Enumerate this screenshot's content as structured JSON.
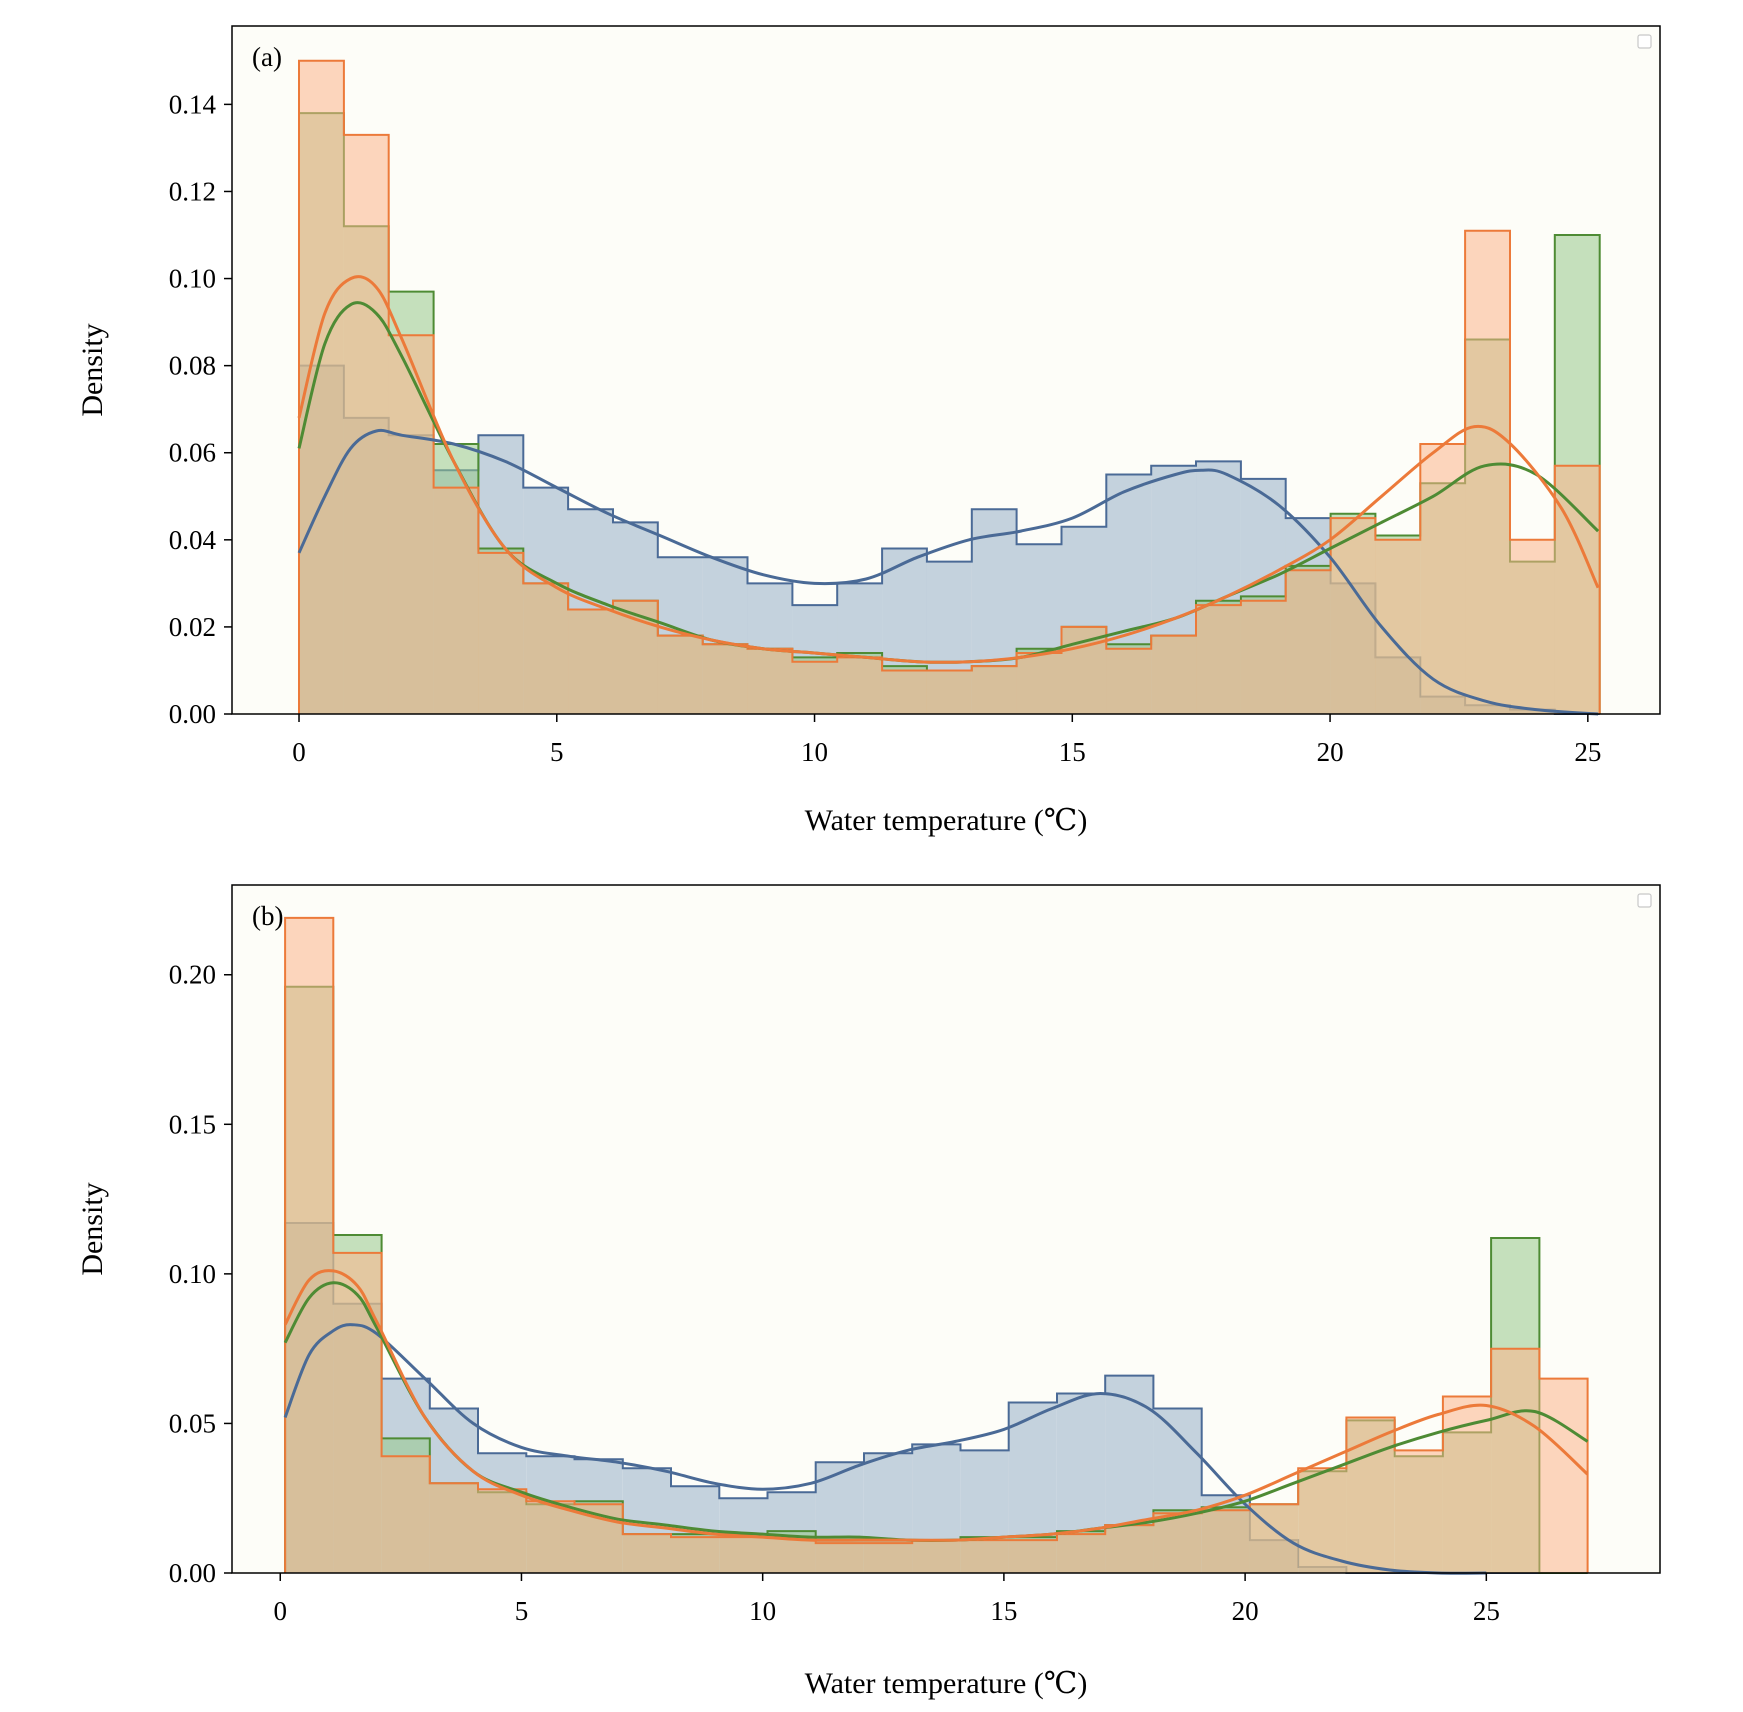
{
  "colors": {
    "background": "#fdfdf8",
    "blue_fill": "#9fb5cc",
    "blue_line": "#4a6a96",
    "green_fill": "#98c98a",
    "green_line": "#4e8b34",
    "orange_fill": "#fcb48b",
    "orange_line": "#ec7a3a"
  },
  "chart_data": [
    {
      "type": "histogram",
      "panel_label": "(a)",
      "xlabel": "Water temperature (℃)",
      "ylabel": "Density",
      "xlim": [
        -1.3,
        26.4
      ],
      "ylim": [
        0,
        0.158
      ],
      "xticks": [
        "0",
        "5",
        "10",
        "15",
        "20",
        "25"
      ],
      "xtick_values": [
        0,
        5,
        10,
        15,
        20,
        25
      ],
      "yticks": [
        "0.00",
        "0.02",
        "0.04",
        "0.06",
        "0.08",
        "0.10",
        "0.12",
        "0.14"
      ],
      "ytick_values": [
        0,
        0.02,
        0.04,
        0.06,
        0.08,
        0.1,
        0.12,
        0.14
      ],
      "grid": false,
      "legend": "top-right (empty)",
      "bin_edges": [
        0,
        0.87,
        1.74,
        2.61,
        3.48,
        4.35,
        5.22,
        6.09,
        6.96,
        7.83,
        8.7,
        9.57,
        10.44,
        11.31,
        12.18,
        13.05,
        13.92,
        14.79,
        15.66,
        16.53,
        17.4,
        18.27,
        19.14,
        20.01,
        20.88,
        21.75,
        22.62,
        23.49,
        24.36,
        25.23
      ],
      "series": [
        {
          "color_key": "blue",
          "hist": [
            0.08,
            0.068,
            0.064,
            0.056,
            0.064,
            0.052,
            0.047,
            0.044,
            0.036,
            0.036,
            0.03,
            0.025,
            0.03,
            0.038,
            0.035,
            0.047,
            0.039,
            0.043,
            0.055,
            0.057,
            0.058,
            0.054,
            0.045,
            0.03,
            0.013,
            0.004,
            0.002,
            0.001,
            0.0,
            0.0
          ],
          "kde_x": [
            0,
            0.5,
            1,
            1.5,
            2,
            3,
            4,
            5,
            6,
            7,
            8,
            9,
            10,
            11,
            12,
            13,
            14,
            15,
            16,
            17,
            17.5,
            18,
            19,
            20,
            21,
            22,
            23,
            24,
            25.2
          ],
          "kde_y": [
            0.037,
            0.05,
            0.061,
            0.065,
            0.064,
            0.062,
            0.058,
            0.052,
            0.046,
            0.041,
            0.036,
            0.032,
            0.03,
            0.031,
            0.036,
            0.04,
            0.042,
            0.045,
            0.051,
            0.055,
            0.056,
            0.055,
            0.048,
            0.036,
            0.02,
            0.008,
            0.003,
            0.001,
            0.0
          ]
        },
        {
          "color_key": "green",
          "hist": [
            0.138,
            0.112,
            0.097,
            0.062,
            0.038,
            0.03,
            0.024,
            0.026,
            0.018,
            0.016,
            0.015,
            0.013,
            0.014,
            0.011,
            0.01,
            0.011,
            0.015,
            0.02,
            0.016,
            0.018,
            0.026,
            0.027,
            0.034,
            0.046,
            0.041,
            0.053,
            0.086,
            0.035,
            0.11,
            0.0
          ],
          "kde_x": [
            0,
            0.5,
            1,
            1.5,
            2,
            3,
            4,
            5,
            6,
            7,
            8,
            9,
            10,
            11,
            12,
            13,
            14,
            15,
            16,
            17,
            18,
            19,
            20,
            21,
            22,
            23,
            24,
            25.2
          ],
          "kde_y": [
            0.061,
            0.085,
            0.094,
            0.092,
            0.082,
            0.058,
            0.038,
            0.03,
            0.025,
            0.021,
            0.017,
            0.015,
            0.014,
            0.013,
            0.012,
            0.012,
            0.013,
            0.016,
            0.019,
            0.022,
            0.027,
            0.032,
            0.038,
            0.044,
            0.05,
            0.057,
            0.055,
            0.042
          ]
        },
        {
          "color_key": "orange",
          "hist": [
            0.15,
            0.133,
            0.087,
            0.052,
            0.037,
            0.03,
            0.024,
            0.026,
            0.018,
            0.016,
            0.015,
            0.012,
            0.013,
            0.01,
            0.01,
            0.011,
            0.014,
            0.02,
            0.015,
            0.018,
            0.025,
            0.026,
            0.033,
            0.045,
            0.04,
            0.062,
            0.111,
            0.04,
            0.057,
            0.0
          ],
          "kde_x": [
            0,
            0.5,
            1,
            1.5,
            2,
            3,
            4,
            5,
            6,
            7,
            8,
            9,
            10,
            11,
            12,
            13,
            14,
            15,
            16,
            17,
            18,
            19,
            20,
            21,
            22,
            22.8,
            23.5,
            24.5,
            25.2
          ],
          "kde_y": [
            0.068,
            0.092,
            0.1,
            0.098,
            0.086,
            0.058,
            0.038,
            0.029,
            0.024,
            0.02,
            0.017,
            0.015,
            0.014,
            0.013,
            0.012,
            0.012,
            0.013,
            0.015,
            0.018,
            0.022,
            0.027,
            0.033,
            0.04,
            0.05,
            0.06,
            0.066,
            0.062,
            0.047,
            0.029
          ]
        }
      ]
    },
    {
      "type": "histogram",
      "panel_label": "(b)",
      "xlabel": "Water temperature (℃)",
      "ylabel": "Density",
      "xlim": [
        -1.0,
        28.6
      ],
      "ylim": [
        0,
        0.23
      ],
      "xticks": [
        "0",
        "5",
        "10",
        "15",
        "20",
        "25"
      ],
      "xtick_values": [
        0,
        5,
        10,
        15,
        20,
        25
      ],
      "yticks": [
        "0.00",
        "0.05",
        "0.10",
        "0.15",
        "0.20"
      ],
      "ytick_values": [
        0,
        0.05,
        0.1,
        0.15,
        0.2
      ],
      "grid": false,
      "legend": "top-right (empty)",
      "bin_edges": [
        0.1,
        1.1,
        2.1,
        3.1,
        4.1,
        5.1,
        6.1,
        7.1,
        8.1,
        9.1,
        10.1,
        11.1,
        12.1,
        13.1,
        14.1,
        15.1,
        16.1,
        17.1,
        18.1,
        19.1,
        20.1,
        21.1,
        22.1,
        23.1,
        24.1,
        25.1,
        26.1,
        27.1
      ],
      "series": [
        {
          "color_key": "blue",
          "hist": [
            0.117,
            0.09,
            0.065,
            0.055,
            0.04,
            0.039,
            0.038,
            0.035,
            0.029,
            0.025,
            0.027,
            0.037,
            0.04,
            0.043,
            0.041,
            0.057,
            0.06,
            0.066,
            0.055,
            0.026,
            0.011,
            0.002,
            0.0,
            0.0,
            0.0,
            0.0,
            0.0
          ],
          "kde_x": [
            0.1,
            0.6,
            1.1,
            1.5,
            2,
            3,
            4,
            5,
            6,
            7,
            8,
            9,
            10,
            11,
            12,
            13,
            14,
            15,
            16,
            17,
            18,
            19,
            20,
            21,
            22,
            23,
            24,
            25
          ],
          "kde_y": [
            0.052,
            0.073,
            0.081,
            0.083,
            0.08,
            0.065,
            0.05,
            0.042,
            0.039,
            0.037,
            0.034,
            0.03,
            0.028,
            0.03,
            0.036,
            0.041,
            0.044,
            0.048,
            0.055,
            0.06,
            0.055,
            0.04,
            0.023,
            0.01,
            0.004,
            0.001,
            0.0,
            0.0
          ]
        },
        {
          "color_key": "green",
          "hist": [
            0.196,
            0.113,
            0.045,
            0.03,
            0.027,
            0.023,
            0.024,
            0.013,
            0.013,
            0.013,
            0.014,
            0.011,
            0.011,
            0.011,
            0.012,
            0.012,
            0.014,
            0.016,
            0.021,
            0.022,
            0.023,
            0.034,
            0.051,
            0.039,
            0.047,
            0.112,
            0.0
          ],
          "kde_x": [
            0.1,
            0.6,
            1.1,
            1.6,
            2,
            3,
            4,
            5,
            6,
            7,
            8,
            9,
            10,
            11,
            12,
            13,
            14,
            15,
            16,
            17,
            18,
            19,
            20,
            21,
            22,
            23,
            24,
            25,
            26,
            27.1
          ],
          "kde_y": [
            0.077,
            0.092,
            0.097,
            0.093,
            0.082,
            0.052,
            0.034,
            0.027,
            0.022,
            0.018,
            0.016,
            0.014,
            0.013,
            0.012,
            0.012,
            0.011,
            0.011,
            0.012,
            0.013,
            0.015,
            0.017,
            0.02,
            0.024,
            0.03,
            0.036,
            0.042,
            0.047,
            0.051,
            0.054,
            0.044
          ]
        },
        {
          "color_key": "orange",
          "hist": [
            0.219,
            0.107,
            0.039,
            0.03,
            0.028,
            0.024,
            0.023,
            0.013,
            0.012,
            0.012,
            0.012,
            0.01,
            0.01,
            0.011,
            0.011,
            0.011,
            0.013,
            0.016,
            0.02,
            0.021,
            0.023,
            0.035,
            0.052,
            0.041,
            0.059,
            0.075,
            0.065
          ],
          "kde_x": [
            0.1,
            0.6,
            1.1,
            1.6,
            2,
            3,
            4,
            5,
            6,
            7,
            8,
            9,
            10,
            11,
            12,
            13,
            14,
            15,
            16,
            17,
            18,
            19,
            20,
            21,
            22,
            23,
            24,
            25,
            26,
            27.1
          ],
          "kde_y": [
            0.083,
            0.098,
            0.101,
            0.096,
            0.084,
            0.052,
            0.034,
            0.026,
            0.021,
            0.017,
            0.015,
            0.013,
            0.012,
            0.011,
            0.011,
            0.011,
            0.011,
            0.012,
            0.013,
            0.015,
            0.018,
            0.021,
            0.026,
            0.033,
            0.04,
            0.047,
            0.053,
            0.056,
            0.049,
            0.033
          ]
        }
      ]
    }
  ]
}
